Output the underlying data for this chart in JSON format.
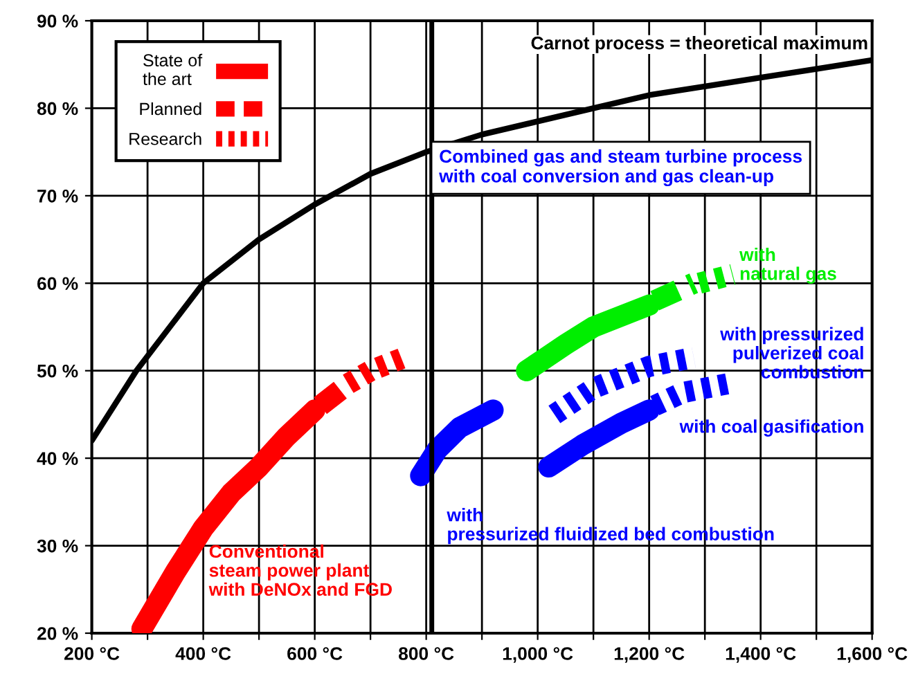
{
  "chart_data": {
    "type": "line",
    "x": [
      200,
      280,
      400,
      500,
      600,
      700,
      800,
      900,
      1000,
      1100,
      1200,
      1300,
      1400,
      1500,
      1600
    ],
    "series": [
      {
        "name": "Carnot process = theoretical maximum",
        "color": "#000000",
        "line_style": "solid",
        "values": [
          42,
          50,
          60,
          65,
          69,
          72.5,
          75,
          77,
          78.5,
          80,
          81.5,
          82.5,
          83.5,
          84.5,
          85.5
        ]
      },
      {
        "name": "Conventional\nsteam power plant\nwith DeNOx and FGD",
        "color": "#ff0000",
        "line_style": "solid",
        "x": [
          290,
          350,
          400,
          450,
          500,
          550,
          600
        ],
        "values": [
          20.5,
          27,
          32,
          36,
          39,
          42.5,
          45.5
        ]
      },
      {
        "color": "#ff0000",
        "line_style": "dashed",
        "x": [
          610,
          650
        ],
        "values": [
          46,
          48
        ]
      },
      {
        "color": "#ff0000",
        "line_style": "dotted",
        "x": [
          660,
          700,
          760
        ],
        "values": [
          48.5,
          50,
          51.5
        ]
      },
      {
        "name": "with\npressurized fluidized bed combustion",
        "color": "#0000ff",
        "line_style": "solid",
        "x": [
          790,
          820,
          860,
          920
        ],
        "values": [
          38,
          41,
          43.5,
          45.5
        ]
      },
      {
        "name": "with\nnatural gas",
        "color": "#00ee00",
        "line_style": "solid",
        "x": [
          980,
          1050,
          1100,
          1200
        ],
        "values": [
          50,
          53,
          55,
          57.5
        ]
      },
      {
        "color": "#00ee00",
        "line_style": "dashed",
        "x": [
          1210,
          1280
        ],
        "values": [
          58,
          60
        ]
      },
      {
        "color": "#00ee00",
        "line_style": "dotted",
        "x": [
          1290,
          1350
        ],
        "values": [
          60,
          61
        ]
      },
      {
        "name": "with pressurized\npulverized coal\ncombustion",
        "color": "#0000ff",
        "line_style": "dotted",
        "x": [
          1030,
          1100,
          1200,
          1280
        ],
        "values": [
          45,
          48,
          50.5,
          51.5
        ]
      },
      {
        "name": "with coal gasification",
        "color": "#0000ff",
        "line_style": "solid",
        "x": [
          1020,
          1080,
          1150,
          1200
        ],
        "values": [
          39,
          41.5,
          44,
          45.5
        ]
      },
      {
        "color": "#0000ff",
        "line_style": "dotted",
        "x": [
          1210,
          1260,
          1340
        ],
        "values": [
          46,
          47.5,
          48.5
        ]
      }
    ],
    "ref_lines": [
      {
        "axis": "x",
        "value": 810,
        "color": "#000000"
      }
    ],
    "annotations": [
      "Combined gas and steam turbine process\nwith coal conversion and gas clean-up",
      "State of\nthe art",
      "Planned",
      "Research"
    ],
    "xlim": [
      200,
      1600
    ],
    "ylim": [
      20,
      90
    ],
    "xticks": [
      {
        "value": 200,
        "label": "200 °C"
      },
      {
        "value": 300,
        "label": null
      },
      {
        "value": 400,
        "label": "400 °C"
      },
      {
        "value": 500,
        "label": null
      },
      {
        "value": 600,
        "label": "600 °C"
      },
      {
        "value": 700,
        "label": null
      },
      {
        "value": 800,
        "label": "800 °C"
      },
      {
        "value": 900,
        "label": null
      },
      {
        "value": 1000,
        "label": "1,000 °C"
      },
      {
        "value": 1100,
        "label": null
      },
      {
        "value": 1200,
        "label": "1,200 °C"
      },
      {
        "value": 1300,
        "label": null
      },
      {
        "value": 1400,
        "label": "1,400 °C"
      },
      {
        "value": 1500,
        "label": null
      },
      {
        "value": 1600,
        "label": "1,600 °C"
      }
    ],
    "yticks": [
      {
        "value": 20,
        "label": "20 %"
      },
      {
        "value": 30,
        "label": "30 %"
      },
      {
        "value": 40,
        "label": "40 %"
      },
      {
        "value": 50,
        "label": "50 %"
      },
      {
        "value": 60,
        "label": "60 %"
      },
      {
        "value": 70,
        "label": "70 %"
      },
      {
        "value": 80,
        "label": "80 %"
      },
      {
        "value": 90,
        "label": "90 %"
      }
    ],
    "grid": true
  }
}
